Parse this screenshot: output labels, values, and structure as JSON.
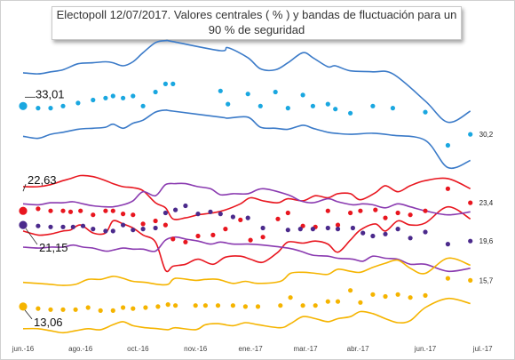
{
  "title": {
    "line1": "Electopoll 12/07/2017. Valores centrales ( % ) y bandas de fluctuación para un",
    "line2": "90 % de seguridad"
  },
  "chart_data": {
    "type": "scatter",
    "title": "Electopoll 12/07/2017. Valores centrales ( % ) y bandas de fluctuación para un 90 % de seguridad",
    "x_ticks": [
      "jun.-16",
      "ago.-16",
      "oct.-16",
      "nov.-16",
      "ene.-17",
      "mar.-17",
      "abr.-17",
      "jun.-17",
      "jul.-17"
    ],
    "xlim": [
      0,
      18.8
    ],
    "ylim": [
      10,
      40
    ],
    "series": [
      {
        "color": "#1aa7e0",
        "band_color": "#3a7ac8",
        "start_label": "33,01",
        "end_label": "30,2",
        "x": [
          0,
          0.6,
          1.1,
          1.6,
          2.2,
          2.8,
          3.3,
          3.6,
          4.0,
          4.4,
          4.8,
          5.3,
          5.7,
          6.0,
          7.9,
          8.2,
          9.0,
          9.5,
          10.1,
          10.6,
          11.2,
          11.6,
          12.2,
          12.5,
          13.1,
          14.0,
          14.8,
          16.1,
          17.0,
          17.9
        ],
        "values": [
          33.0,
          32.8,
          32.8,
          33.0,
          33.3,
          33.6,
          33.8,
          34.0,
          33.8,
          34.0,
          33.0,
          34.4,
          35.2,
          35.2,
          34.5,
          33.2,
          34.2,
          33.0,
          34.4,
          32.8,
          34.1,
          33.0,
          33.2,
          32.7,
          32.3,
          33.0,
          32.8,
          32.4,
          29.1,
          30.2
        ],
        "upper": [
          36.3,
          36.2,
          36.4,
          36.6,
          37.2,
          37.3,
          37.4,
          37.3,
          37.0,
          37.4,
          38.3,
          39.3,
          39.5,
          39.4,
          38.5,
          38.8,
          37.8,
          36.7,
          36.6,
          37.3,
          38.3,
          37.8,
          36.9,
          37.0,
          36.5,
          36.4,
          36.2,
          33.5,
          31.4,
          32.5
        ],
        "lower": [
          30.0,
          29.8,
          30.2,
          30.4,
          30.7,
          30.8,
          30.9,
          31.2,
          30.8,
          31.3,
          31.6,
          32.4,
          32.6,
          32.5,
          31.9,
          31.8,
          31.9,
          30.9,
          30.8,
          30.7,
          31.1,
          30.8,
          30.4,
          30.3,
          30.2,
          30.3,
          30.1,
          29.6,
          26.9,
          27.6
        ]
      },
      {
        "color": "#e8161f",
        "band_color": "#e8161f",
        "start_label": "22,63",
        "end_label": "23,4",
        "x": [
          0,
          0.6,
          1.1,
          1.6,
          1.9,
          2.3,
          2.8,
          3.3,
          3.6,
          4.0,
          4.4,
          4.8,
          5.3,
          5.7,
          6.0,
          6.5,
          7.0,
          7.6,
          8.1,
          8.7,
          9.1,
          9.6,
          10.2,
          10.6,
          11.2,
          11.7,
          12.2,
          12.6,
          13.1,
          13.5,
          14.1,
          14.5,
          15.0,
          15.5,
          16.1,
          17.0,
          17.9
        ],
        "values": [
          22.6,
          22.8,
          22.6,
          22.6,
          22.5,
          22.6,
          22.2,
          22.6,
          22.6,
          22.3,
          22.2,
          21.3,
          21.6,
          21.2,
          19.8,
          19.5,
          20.1,
          20.2,
          20.8,
          21.7,
          19.7,
          20.0,
          21.8,
          22.4,
          21.1,
          21.0,
          22.6,
          21.2,
          22.4,
          22.6,
          22.7,
          21.9,
          22.4,
          22.2,
          22.6,
          24.8,
          23.4
        ],
        "upper": [
          25.0,
          25.0,
          25.2,
          25.6,
          25.8,
          26.1,
          26.0,
          25.6,
          25.3,
          25.0,
          24.9,
          24.6,
          23.4,
          22.9,
          21.8,
          21.9,
          22.2,
          22.4,
          22.7,
          23.3,
          23.9,
          23.6,
          23.4,
          23.8,
          23.6,
          24.1,
          23.9,
          24.3,
          24.3,
          23.7,
          24.4,
          25.1,
          24.5,
          25.1,
          25.6,
          25.8,
          24.8
        ],
        "lower": [
          20.6,
          20.2,
          20.3,
          20.6,
          20.7,
          21.2,
          20.4,
          20.4,
          21.6,
          21.3,
          20.9,
          20.2,
          19.5,
          16.7,
          17.1,
          17.3,
          17.8,
          17.3,
          18.0,
          18.1,
          17.8,
          17.5,
          18.5,
          19.5,
          19.4,
          19.6,
          19.3,
          18.5,
          19.7,
          20.7,
          21.3,
          20.6,
          21.6,
          21.2,
          21.4,
          23.0,
          21.8
        ]
      },
      {
        "color": "#4b2a8c",
        "band_color": "#8a3ab0",
        "start_label": "21,15",
        "end_label": "19,6",
        "x": [
          0,
          0.6,
          1.1,
          1.6,
          2.0,
          2.4,
          2.8,
          3.3,
          3.6,
          4.0,
          4.4,
          4.8,
          5.3,
          5.7,
          6.1,
          6.5,
          7.0,
          7.5,
          7.9,
          8.4,
          9.0,
          9.6,
          10.6,
          11.1,
          11.6,
          12.2,
          12.6,
          13.2,
          13.6,
          14.0,
          14.5,
          15.0,
          15.5,
          16.1,
          17.0,
          17.9
        ],
        "values": [
          21.2,
          21.1,
          21.0,
          21.0,
          21.0,
          21.1,
          20.8,
          20.6,
          20.6,
          21.2,
          20.7,
          20.8,
          20.9,
          22.4,
          22.7,
          23.1,
          22.3,
          22.5,
          22.3,
          22.0,
          21.9,
          20.9,
          20.7,
          20.8,
          20.8,
          20.9,
          20.8,
          20.9,
          20.4,
          20.1,
          20.3,
          20.8,
          19.9,
          20.5,
          19.3,
          19.6
        ],
        "upper": [
          23.3,
          23.2,
          23.4,
          23.4,
          23.5,
          23.3,
          23.1,
          23.0,
          23.0,
          23.2,
          23.6,
          24.5,
          24.1,
          25.2,
          25.3,
          25.3,
          25.0,
          24.8,
          24.2,
          24.3,
          24.3,
          24.8,
          24.2,
          23.6,
          23.4,
          23.8,
          23.5,
          23.2,
          23.3,
          23.2,
          22.9,
          23.3,
          23.0,
          22.6,
          22.2,
          22.5
        ],
        "lower": [
          19.0,
          18.9,
          19.0,
          19.0,
          19.2,
          19.0,
          18.9,
          18.6,
          18.7,
          18.9,
          18.8,
          18.8,
          18.6,
          19.7,
          20.0,
          19.8,
          19.6,
          19.3,
          19.5,
          19.3,
          19.3,
          19.2,
          18.9,
          18.6,
          18.2,
          18.1,
          17.9,
          17.8,
          17.6,
          18.1,
          17.9,
          17.8,
          17.3,
          17.3,
          16.6,
          16.9
        ]
      },
      {
        "color": "#f5b400",
        "band_color": "#f5b400",
        "start_label": "13,06",
        "end_label": "15,7",
        "x": [
          0,
          0.6,
          1.1,
          1.6,
          2.1,
          2.6,
          3.1,
          3.6,
          4.0,
          4.4,
          4.9,
          5.4,
          5.8,
          6.1,
          6.9,
          7.3,
          7.8,
          8.4,
          8.9,
          9.4,
          10.3,
          10.7,
          11.2,
          11.7,
          12.2,
          12.6,
          13.1,
          13.5,
          14.0,
          14.5,
          15.0,
          15.5,
          16.1,
          17.0,
          17.9
        ],
        "values": [
          13.1,
          12.9,
          12.8,
          12.8,
          12.8,
          13.0,
          12.7,
          12.7,
          13.0,
          12.9,
          13.0,
          13.1,
          13.3,
          13.2,
          13.2,
          13.2,
          13.2,
          13.2,
          13.1,
          13.1,
          13.2,
          14.0,
          13.2,
          13.2,
          13.6,
          13.6,
          14.7,
          13.5,
          14.3,
          14.1,
          14.3,
          14.0,
          14.2,
          15.9,
          15.7
        ],
        "upper": [
          15.5,
          15.4,
          15.3,
          15.2,
          15.3,
          15.8,
          15.8,
          16.1,
          15.9,
          15.6,
          15.5,
          15.3,
          15.3,
          15.9,
          15.7,
          15.8,
          15.8,
          15.4,
          15.6,
          15.4,
          15.6,
          16.4,
          16.5,
          16.4,
          16.3,
          16.8,
          16.6,
          16.5,
          17.0,
          17.4,
          17.7,
          16.9,
          16.4,
          17.9,
          17.2
        ],
        "lower": [
          10.9,
          10.9,
          10.7,
          10.5,
          10.7,
          10.9,
          10.8,
          11.3,
          11.6,
          11.2,
          11.0,
          10.9,
          10.8,
          11.0,
          10.8,
          11.3,
          11.4,
          11.2,
          11.5,
          11.3,
          11.0,
          11.4,
          12.1,
          11.9,
          11.6,
          11.9,
          12.1,
          12.6,
          12.4,
          11.9,
          11.5,
          11.7,
          13.0,
          13.9,
          13.4
        ]
      }
    ]
  }
}
